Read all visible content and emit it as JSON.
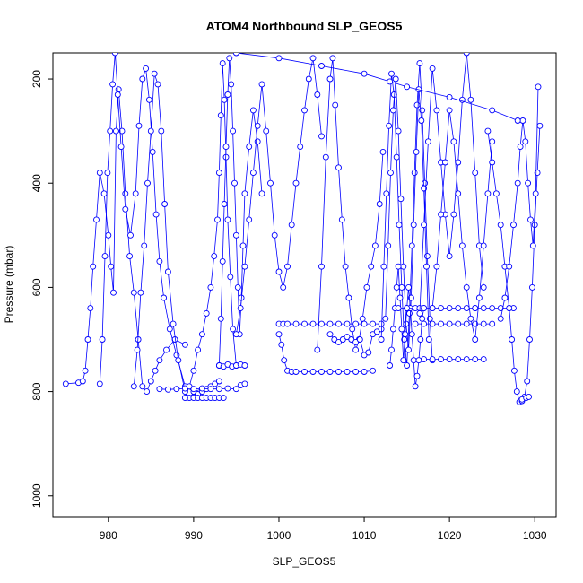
{
  "chart_data": {
    "type": "line",
    "title": "ATOM4 Northbound SLP_GEOS5",
    "xlabel": "SLP_GEOS5",
    "ylabel": "Pressure (mbar)",
    "xlim": [
      973.5,
      1032.5
    ],
    "ylim": [
      1040,
      150
    ],
    "y_reversed": true,
    "x_ticks": [
      980,
      990,
      1000,
      1010,
      1020,
      1030
    ],
    "y_ticks": [
      200,
      400,
      600,
      800,
      1000
    ],
    "grid": false,
    "legend": "none",
    "marker": "open-circle",
    "color": "#0000ff",
    "series": [
      {
        "x": [
          975.0,
          976.5,
          977.0,
          977.3,
          977.6,
          977.9,
          978.2,
          978.6,
          979.0,
          979.5,
          980.0,
          980.3,
          980.6,
          980.9,
          981.2,
          981.6,
          982.0,
          982.5,
          983.0,
          983.5,
          984.0,
          984.5,
          985.0,
          985.5,
          986.0,
          986.8,
          987.8,
          989.0
        ],
        "y": [
          785,
          783,
          780,
          760,
          700,
          640,
          560,
          470,
          380,
          420,
          500,
          560,
          610,
          300,
          220,
          300,
          420,
          540,
          610,
          700,
          790,
          800,
          780,
          760,
          740,
          720,
          700,
          710
        ]
      },
      {
        "x": [
          979.0,
          979.3,
          979.6,
          979.9,
          980.2,
          980.5,
          980.8,
          981.1,
          981.5,
          982.0,
          982.6,
          983.2,
          983.6,
          984.0,
          984.4,
          984.8,
          985.2,
          985.6,
          986.0,
          986.5,
          987.2,
          988.0,
          989.0,
          990.0,
          991.0
        ],
        "y": [
          785,
          700,
          540,
          380,
          300,
          210,
          150,
          230,
          330,
          450,
          500,
          420,
          290,
          200,
          180,
          240,
          340,
          460,
          550,
          620,
          680,
          730,
          790,
          800,
          795
        ]
      },
      {
        "x": [
          983.0,
          983.4,
          983.8,
          984.2,
          984.6,
          985.0,
          985.4,
          985.8,
          986.2,
          986.6,
          987.0,
          987.6,
          988.2,
          989.0,
          989.5,
          990.0,
          990.5,
          991.0,
          991.5,
          992.0,
          992.5,
          993.0
        ],
        "y": [
          790,
          720,
          610,
          520,
          400,
          300,
          190,
          210,
          300,
          440,
          570,
          670,
          740,
          800,
          812,
          810,
          805,
          800,
          795,
          790,
          785,
          780
        ]
      },
      {
        "x": [
          986.0,
          987.0,
          988.0,
          989.0,
          990.0,
          991.0,
          992.0,
          993.0,
          994.0,
          995.0,
          995.5,
          996.0
        ],
        "y": [
          795,
          796,
          795,
          794,
          795,
          794,
          795,
          795,
          794,
          795,
          788,
          785
        ]
      },
      {
        "x": [
          989.0,
          989.5,
          990.0,
          990.5,
          991.0,
          991.5,
          992.0,
          992.4,
          992.8,
          993.0,
          993.2,
          993.4,
          993.6,
          993.8,
          994.0,
          994.3,
          994.6,
          995.0
        ],
        "y": [
          812,
          790,
          760,
          720,
          690,
          650,
          600,
          540,
          470,
          380,
          270,
          170,
          240,
          350,
          470,
          580,
          680,
          750
        ]
      },
      {
        "x": [
          993.0,
          993.2,
          993.4,
          993.6,
          993.8,
          994.0,
          994.2,
          994.4,
          994.6,
          994.8,
          995.0,
          995.2,
          995.4,
          995.6,
          995.8,
          996.0,
          996.5,
          997.0,
          997.5,
          998.0
        ],
        "y": [
          750,
          660,
          550,
          440,
          330,
          230,
          160,
          210,
          300,
          400,
          500,
          600,
          690,
          620,
          520,
          420,
          330,
          260,
          320,
          420
        ]
      },
      {
        "x": [
          995.0,
          995.5,
          996.0,
          996.5,
          997.0,
          997.5,
          998.0,
          998.5,
          999.0,
          999.5,
          1000.0,
          1000.5,
          1001.0,
          1001.5,
          1002.0,
          1002.5,
          1003.0,
          1003.5,
          1004.0,
          1004.5,
          1005.0
        ],
        "y": [
          690,
          640,
          560,
          470,
          380,
          290,
          210,
          300,
          400,
          500,
          570,
          600,
          560,
          480,
          400,
          330,
          260,
          200,
          160,
          230,
          310
        ]
      },
      {
        "x": [
          1000.0,
          1000.5,
          1001.0,
          1002.0,
          1003.0,
          1004.0,
          1005.0,
          1006.0,
          1007.0,
          1008.0,
          1009.0,
          1010.0,
          1011.0,
          1012.0
        ],
        "y": [
          670,
          670,
          670,
          670,
          670,
          670,
          670,
          670,
          670,
          670,
          670,
          670,
          670,
          670
        ]
      },
      {
        "x": [
          1000.0,
          1000.3,
          1000.6,
          1001.0,
          1001.5,
          1002.0,
          1003.0,
          1004.0,
          1005.0,
          1006.0,
          1007.0,
          1008.0,
          1009.0,
          1010.0,
          1011.0
        ],
        "y": [
          690,
          710,
          740,
          760,
          762,
          762,
          762,
          762,
          762,
          762,
          762,
          762,
          762,
          762,
          760
        ]
      },
      {
        "x": [
          1004.5,
          1005.0,
          1005.5,
          1006.0,
          1006.3,
          1006.6,
          1007.0,
          1007.4,
          1007.8,
          1008.2,
          1008.6,
          1009.0,
          1009.4,
          1009.8,
          1010.3,
          1010.8,
          1011.3,
          1011.8,
          1012.2
        ],
        "y": [
          720,
          560,
          350,
          200,
          160,
          250,
          370,
          470,
          560,
          620,
          680,
          720,
          700,
          660,
          600,
          560,
          520,
          440,
          340
        ]
      },
      {
        "x": [
          1006.0,
          1006.5,
          1007.0,
          1007.5,
          1008.0,
          1008.5,
          1009.0,
          1009.5,
          1010.0,
          1010.5,
          1011.0,
          1011.5,
          1012.0
        ],
        "y": [
          690,
          700,
          705,
          700,
          695,
          700,
          705,
          700,
          730,
          725,
          690,
          685,
          680
        ]
      },
      {
        "x": [
          1012.0,
          1012.3,
          1012.6,
          1012.9,
          1013.2,
          1013.5,
          1013.8,
          1014.1,
          1014.4,
          1014.7,
          1015.0,
          1015.3,
          1015.6,
          1015.9,
          1016.2,
          1016.5,
          1016.8,
          1017.1,
          1017.4,
          1017.7,
          1018.0
        ],
        "y": [
          700,
          560,
          420,
          290,
          190,
          230,
          350,
          480,
          600,
          700,
          750,
          650,
          520,
          380,
          250,
          170,
          260,
          400,
          540,
          660,
          740
        ]
      },
      {
        "x": [
          1012.5,
          1012.8,
          1013.1,
          1013.4,
          1013.7,
          1014.0,
          1014.3,
          1014.6,
          1014.9,
          1015.2,
          1015.5,
          1015.8,
          1016.1,
          1016.4,
          1016.7,
          1017.0,
          1017.3,
          1017.6
        ],
        "y": [
          660,
          520,
          380,
          260,
          200,
          300,
          430,
          560,
          670,
          720,
          620,
          480,
          340,
          220,
          280,
          410,
          560,
          700
        ]
      },
      {
        "x": [
          1013.0,
          1013.2,
          1013.4,
          1013.6,
          1013.8,
          1014.0,
          1014.2,
          1014.4,
          1014.6,
          1014.8,
          1015.0,
          1015.2,
          1015.4,
          1015.6,
          1015.8,
          1016.0,
          1016.2,
          1016.4,
          1016.6,
          1016.8,
          1017.0
        ],
        "y": [
          750,
          720,
          680,
          640,
          600,
          560,
          620,
          680,
          740,
          690,
          640,
          600,
          640,
          690,
          740,
          790,
          770,
          740,
          700,
          660,
          640
        ]
      },
      {
        "x": [
          1014.0,
          1015.0,
          1016.0,
          1016.5,
          1017.0,
          1018.0,
          1019.0,
          1020.0,
          1021.0,
          1022.0,
          1023.0
        ],
        "y": [
          640,
          640,
          640,
          640,
          640,
          640,
          640,
          640,
          640,
          640,
          640
        ]
      },
      {
        "x": [
          1016.0,
          1017.0,
          1018.0,
          1019.0,
          1020.0,
          1021.0,
          1022.0,
          1023.0,
          1024.0,
          1025.0
        ],
        "y": [
          670,
          670,
          670,
          670,
          670,
          670,
          670,
          670,
          670,
          670
        ]
      },
      {
        "x": [
          1017.0,
          1018.0,
          1019.0,
          1020.0,
          1021.0,
          1022.0,
          1023.0,
          1024.0
        ],
        "y": [
          738,
          738,
          738,
          738,
          738,
          738,
          738,
          738
        ]
      },
      {
        "x": [
          1016.5,
          1017.0,
          1017.5,
          1018.0,
          1018.5,
          1019.0,
          1019.5,
          1020.0,
          1020.5,
          1021.0,
          1021.5,
          1022.0,
          1022.5,
          1023.0,
          1023.5,
          1024.0
        ],
        "y": [
          650,
          480,
          320,
          180,
          260,
          360,
          460,
          540,
          460,
          360,
          240,
          150,
          240,
          380,
          520,
          600
        ]
      },
      {
        "x": [
          1018.0,
          1018.5,
          1019.0,
          1019.5,
          1020.0,
          1020.5,
          1021.0,
          1021.5,
          1022.0,
          1022.5,
          1023.0,
          1023.5,
          1024.0,
          1024.5,
          1025.0
        ],
        "y": [
          640,
          560,
          460,
          360,
          260,
          320,
          420,
          520,
          600,
          660,
          700,
          620,
          520,
          420,
          320
        ]
      },
      {
        "x": [
          1023.0,
          1024.0,
          1025.0,
          1026.0,
          1027.0,
          1027.5
        ],
        "y": [
          640,
          640,
          640,
          640,
          640,
          640
        ]
      },
      {
        "x": [
          1024.5,
          1025.0,
          1025.5,
          1026.0,
          1026.5,
          1027.0,
          1027.3,
          1027.6,
          1027.9,
          1028.2,
          1028.5,
          1028.8,
          1029.1,
          1029.4,
          1029.7,
          1030.0,
          1030.3,
          1030.6
        ],
        "y": [
          300,
          360,
          420,
          480,
          560,
          640,
          700,
          760,
          800,
          820,
          818,
          810,
          780,
          700,
          600,
          480,
          380,
          290
        ]
      },
      {
        "x": [
          1026.0,
          1026.5,
          1027.0,
          1027.5,
          1028.0,
          1028.3,
          1028.6,
          1028.9,
          1029.2,
          1029.5,
          1029.8,
          1030.1,
          1030.4
        ],
        "y": [
          660,
          620,
          560,
          480,
          400,
          330,
          280,
          320,
          400,
          470,
          520,
          420,
          215
        ]
      },
      {
        "x": [
          995.0,
          1000.0,
          1005.0,
          1010.0,
          1013.0,
          1015.0,
          1020.0,
          1025.0,
          1028.0
        ],
        "y": [
          150,
          160,
          175,
          190,
          205,
          215,
          235,
          260,
          280
        ]
      },
      {
        "x": [
          993.0,
          993.5,
          994.0,
          994.5,
          995.0,
          995.5,
          996.0
        ],
        "y": [
          750,
          752,
          748,
          752,
          750,
          748,
          750
        ]
      },
      {
        "x": [
          990.0,
          990.5,
          991.0,
          991.5,
          992.0,
          992.5,
          993.0,
          993.5
        ],
        "y": [
          812,
          812,
          812,
          812,
          812,
          812,
          812,
          812
        ]
      },
      {
        "x": [
          1028.5,
          1029.0,
          1029.3
        ],
        "y": [
          815,
          812,
          810
        ]
      }
    ]
  }
}
